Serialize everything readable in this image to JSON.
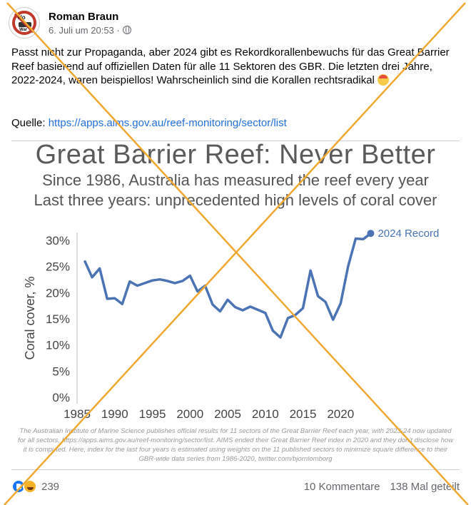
{
  "post": {
    "author": "Roman Braun",
    "timestamp": "6. Juli um 20:53 ·",
    "avatar": {
      "line1": "No",
      "line2": "War"
    },
    "text": "Passt nicht zur Propaganda, aber 2024 gibt es Rekordkorallenbewuchs für das Great Barrier Reef basierend auf offiziellen Daten für alle 11 Sektoren des GBR. Die letzten drei Jahre, 2022-2024, waren beispiellos! Wahrscheinlich sind die Korallen rechtsradikal",
    "source_label": "Quelle:",
    "source_url": "https://apps.aims.gov.au/reef-monitoring/sector/list"
  },
  "chart": {
    "title": "Great Barrier Reef: Never Better",
    "subtitle1": "Since 1986, Australia has measured the reef every year",
    "subtitle2": "Last three years: unprecedented high levels of coral cover",
    "footnote": "The Australian Institute of Marine Science publishes official results for 11 sectors of the Great Barrier Reef each year, with 2023-24 now updated for all sectors, https://apps.aims.gov.au/reef-monitoring/sector/list. AIMS ended their Great Barrier Reef index in 2020 and they don't disclose how it is computed. Here, index for the last four years is estimated using weights on the 11 published sectors to minimize square difference to their GBR-wide data series from 1986-2020, twitter.com/bjornlomborg"
  },
  "chart_data": {
    "type": "line",
    "title": "Great Barrier Reef: Never Better",
    "ylabel": "Coral cover, %",
    "xlabel": "",
    "xlim": [
      1985,
      2025
    ],
    "ylim": [
      0,
      30
    ],
    "xticks": [
      "1985",
      "1990",
      "1995",
      "2000",
      "2005",
      "2010",
      "2015",
      "2020"
    ],
    "yticks": [
      "0%",
      "5%",
      "10%",
      "15%",
      "20%",
      "25%",
      "30%"
    ],
    "annotation": "2024 Record",
    "color": "#4a74b4",
    "x": [
      1986,
      1987,
      1988,
      1989,
      1990,
      1991,
      1992,
      1993,
      1994,
      1995,
      1996,
      1997,
      1998,
      1999,
      2000,
      2001,
      2002,
      2003,
      2004,
      2005,
      2006,
      2007,
      2008,
      2009,
      2010,
      2011,
      2012,
      2013,
      2014,
      2015,
      2016,
      2017,
      2018,
      2019,
      2020,
      2021,
      2022,
      2023,
      2024
    ],
    "y": [
      26,
      22.8,
      24.5,
      18.7,
      18.8,
      17.7,
      22,
      21.2,
      21.7,
      22.2,
      22.4,
      22.1,
      21.7,
      22.1,
      23.1,
      20.1,
      21.2,
      17.6,
      16.3,
      18.5,
      17.1,
      16.5,
      17.2,
      16.6,
      16.0,
      12.6,
      11.3,
      15.0,
      15.6,
      16.9,
      24.1,
      19.2,
      18.1,
      14.7,
      17.8,
      24.9,
      30.2,
      30.1,
      31.2
    ]
  },
  "footer": {
    "reaction_count": "239",
    "comments": "10 Kommentare",
    "shares": "138 Mal geteilt"
  },
  "colors": {
    "link": "#216fdb",
    "cross": "#f0a830",
    "muted": "#65676b"
  }
}
